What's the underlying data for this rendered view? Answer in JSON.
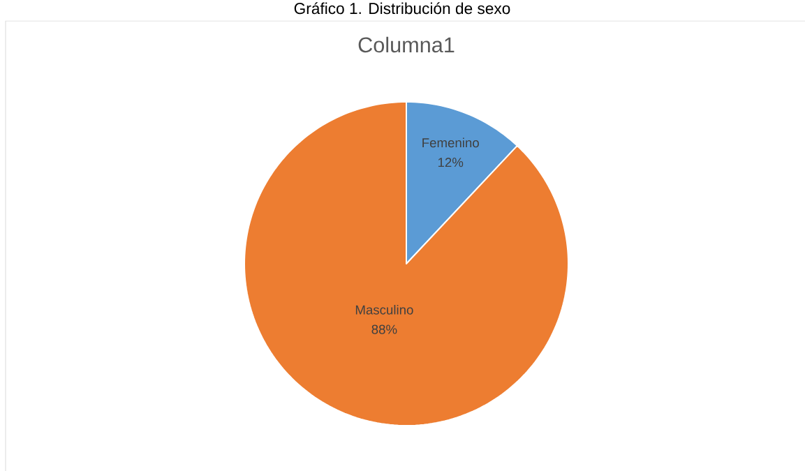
{
  "chart_data": {
    "type": "pie",
    "title": "Gráfico 1. Distribución de sexo",
    "subtitle": "Columna1",
    "categories": [
      "Femenino",
      "Masculino"
    ],
    "values": [
      12,
      88
    ],
    "colors": [
      "#5b9bd5",
      "#ed7d31"
    ],
    "value_labels": [
      "12%",
      "88%"
    ],
    "legend": false
  }
}
